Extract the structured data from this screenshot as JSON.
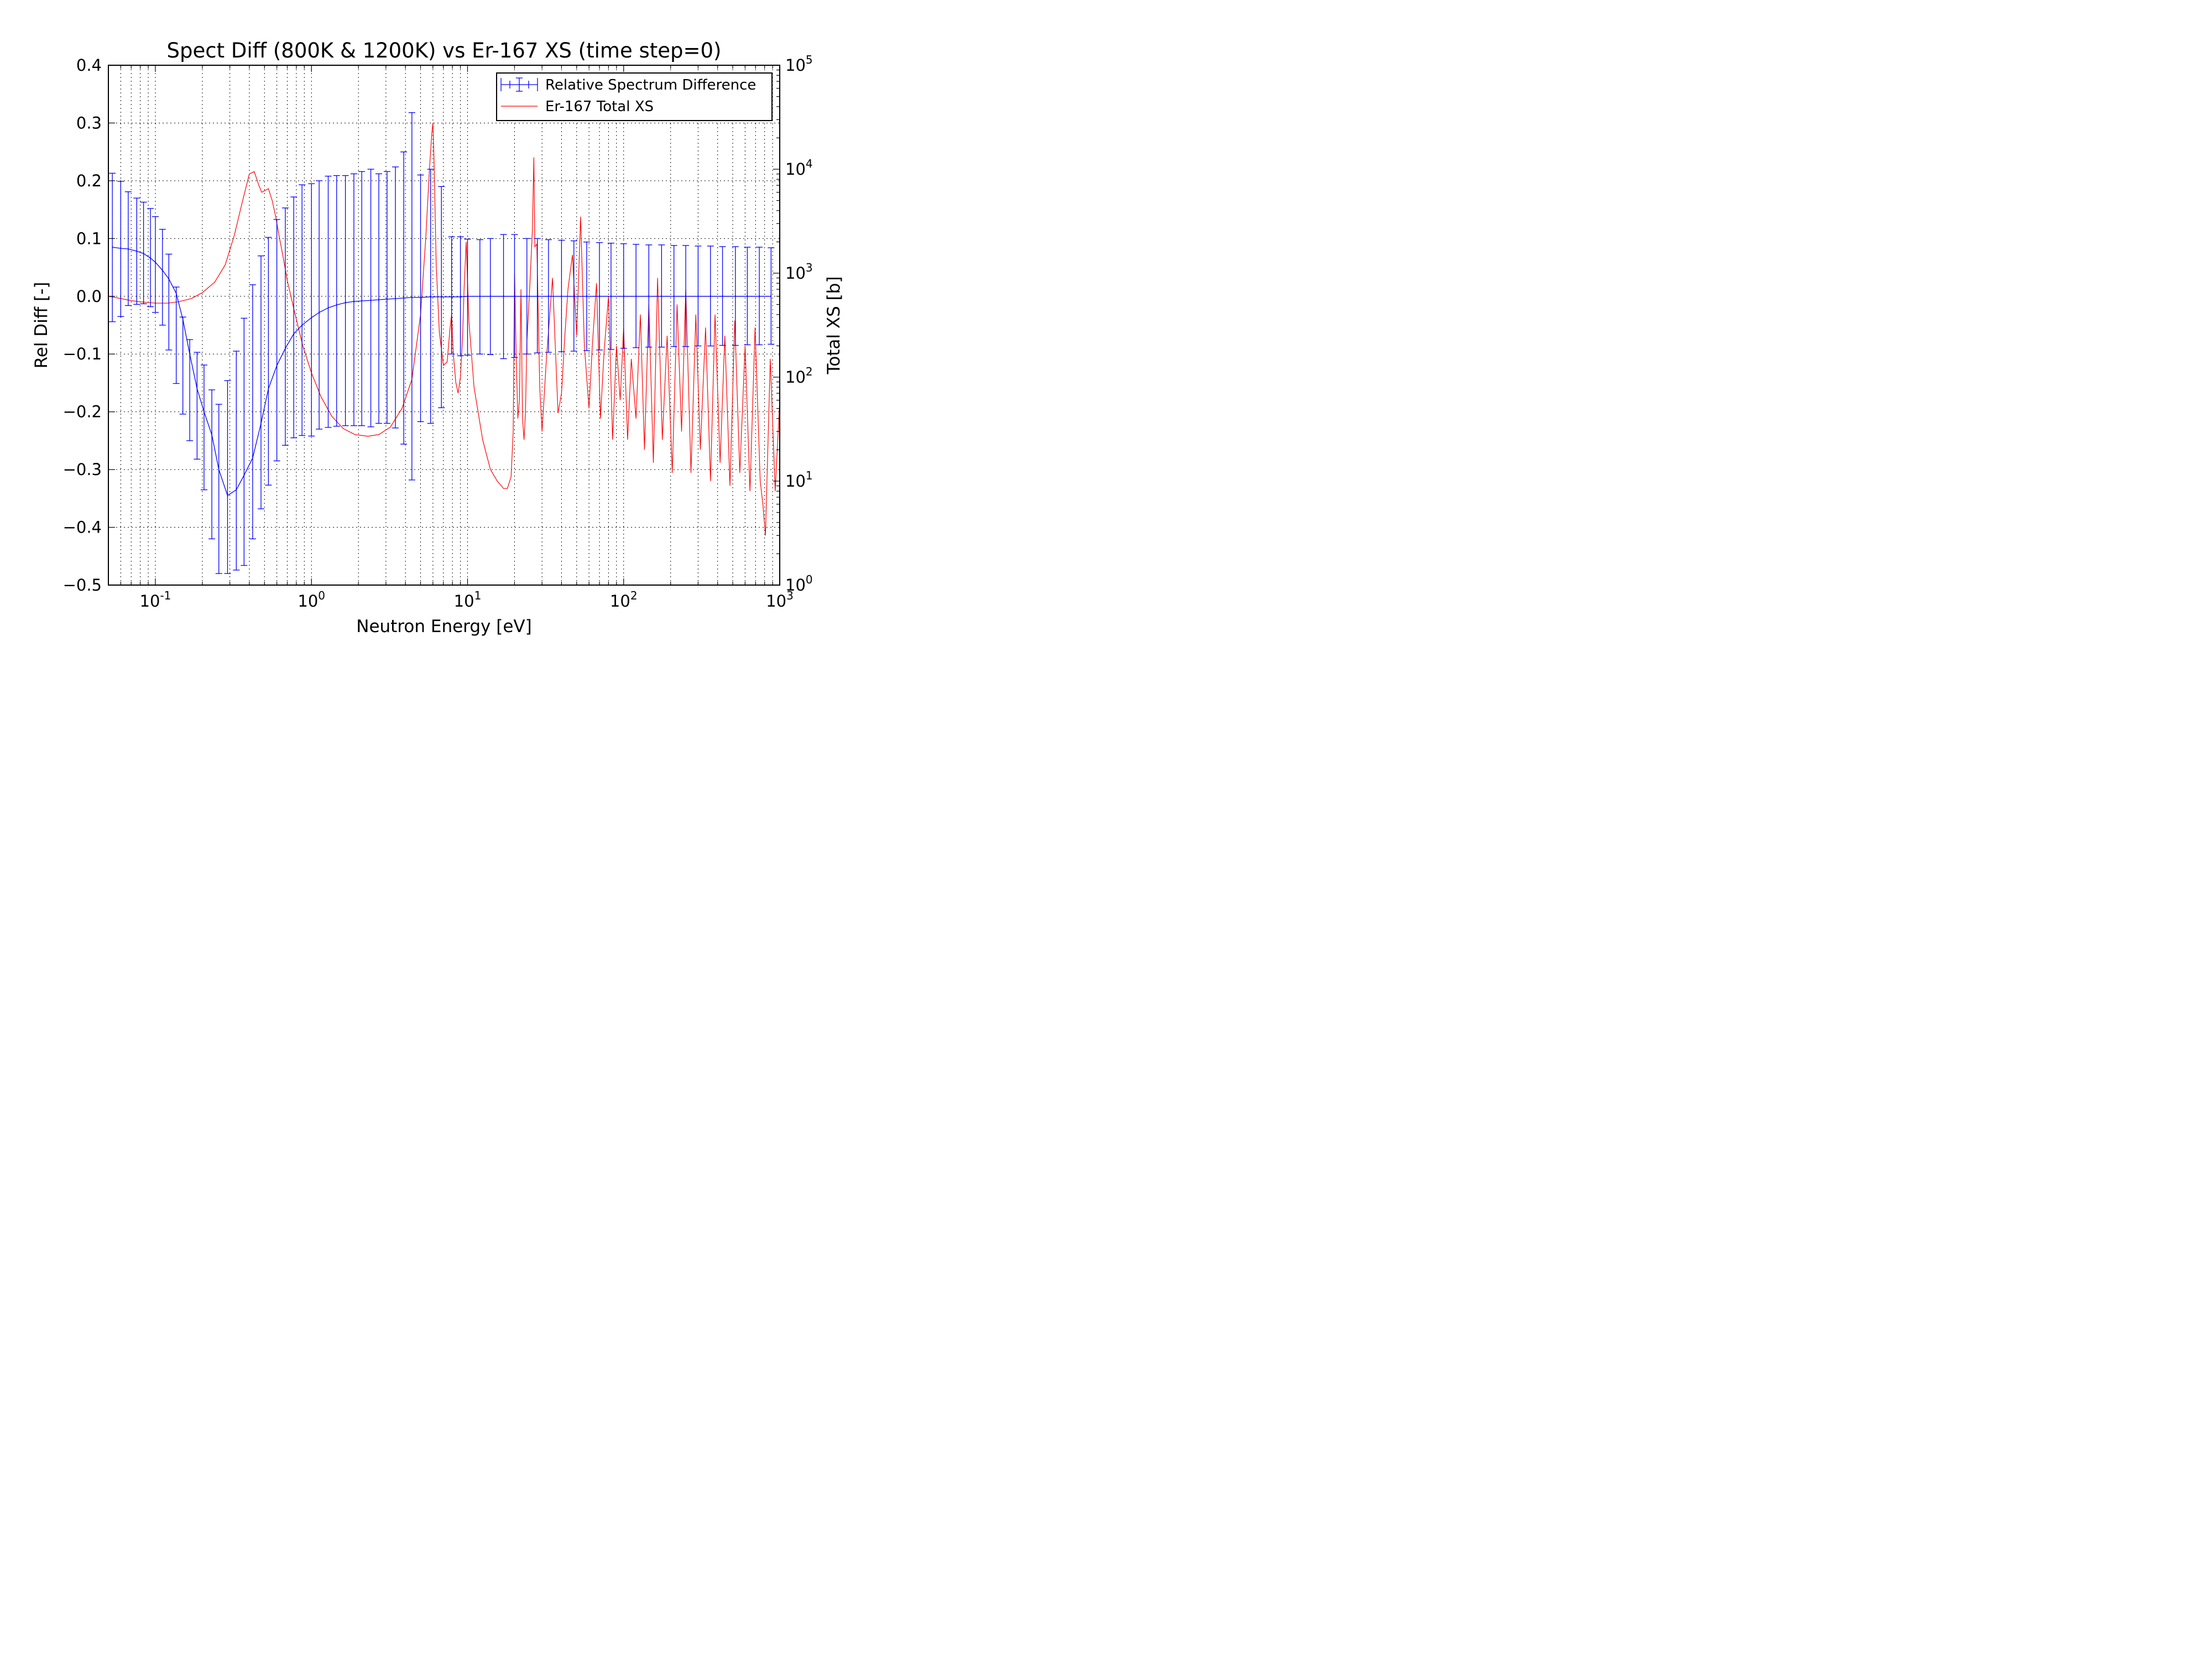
{
  "chart_data": {
    "type": "line",
    "title": "Spect Diff (800K & 1200K) vs  Er-167 XS (time step=0)",
    "xlabel": "Neutron Energy [eV]",
    "ylabel": "Rel Diff [-]",
    "y2label": "Total XS [b]",
    "xscale": "log",
    "xlim": [
      0.05,
      1000
    ],
    "ylim": [
      -0.5,
      0.4
    ],
    "y2scale": "log",
    "y2lim": [
      1,
      100000
    ],
    "grid": true,
    "legend_position": "upper-right",
    "x_ticks": [
      {
        "base": "10",
        "exp": "-1",
        "value": 0.1
      },
      {
        "base": "10",
        "exp": "0",
        "value": 1
      },
      {
        "base": "10",
        "exp": "1",
        "value": 10
      },
      {
        "base": "10",
        "exp": "2",
        "value": 100
      },
      {
        "base": "10",
        "exp": "3",
        "value": 1000
      }
    ],
    "y_ticks": [
      "0.4",
      "0.3",
      "0.2",
      "0.1",
      "0.0",
      "−0.1",
      "−0.2",
      "−0.3",
      "−0.4",
      "−0.5"
    ],
    "y2_ticks": [
      {
        "base": "10",
        "exp": "5",
        "value": 100000
      },
      {
        "base": "10",
        "exp": "4",
        "value": 10000
      },
      {
        "base": "10",
        "exp": "3",
        "value": 1000
      },
      {
        "base": "10",
        "exp": "2",
        "value": 100
      },
      {
        "base": "10",
        "exp": "1",
        "value": 10
      },
      {
        "base": "10",
        "exp": "0",
        "value": 1
      }
    ],
    "series": [
      {
        "name": "Relative Spectrum Difference",
        "color": "#0000ff",
        "axis": "left",
        "style": "line-with-errorbars",
        "x": [
          0.053,
          0.06,
          0.067,
          0.076,
          0.084,
          0.093,
          0.1,
          0.111,
          0.122,
          0.136,
          0.15,
          0.166,
          0.185,
          0.205,
          0.23,
          0.255,
          0.29,
          0.33,
          0.37,
          0.42,
          0.475,
          0.53,
          0.6,
          0.68,
          0.77,
          0.87,
          1.0,
          1.12,
          1.28,
          1.45,
          1.65,
          1.87,
          2.1,
          2.4,
          2.7,
          3.05,
          3.45,
          3.9,
          4.4,
          5.0,
          5.8,
          6.8,
          7.9,
          9.0,
          10.0,
          12.0,
          14.0,
          17.0,
          20.0,
          24.0,
          28.0,
          33.0,
          40.0,
          48.0,
          58.0,
          70.0,
          83.0,
          100.0,
          120.0,
          145.0,
          175.0,
          210.0,
          250.0,
          300.0,
          360.0,
          430.0,
          520.0,
          620.0,
          740.0,
          880.0
        ],
        "y": [
          0.085,
          0.083,
          0.082,
          0.078,
          0.074,
          0.066,
          0.059,
          0.045,
          0.03,
          0.005,
          -0.04,
          -0.1,
          -0.16,
          -0.2,
          -0.24,
          -0.3,
          -0.345,
          -0.335,
          -0.31,
          -0.28,
          -0.22,
          -0.16,
          -0.12,
          -0.09,
          -0.065,
          -0.05,
          -0.037,
          -0.028,
          -0.02,
          -0.015,
          -0.011,
          -0.009,
          -0.008,
          -0.007,
          -0.006,
          -0.005,
          -0.004,
          -0.003,
          -0.002,
          -0.002,
          -0.001,
          -0.001,
          -0.001,
          -0.001,
          0.0,
          0.0,
          0.0,
          0.0,
          0.0,
          0.0,
          0.0,
          0.0,
          0.0,
          0.0,
          0.0,
          0.0,
          0.0,
          0.0,
          0.0,
          0.0,
          0.0,
          0.0,
          0.0,
          0.0,
          0.0,
          0.0,
          0.0,
          0.0,
          0.0,
          0.0
        ],
        "y_err_high": [
          0.213,
          0.199,
          0.181,
          0.17,
          0.163,
          0.152,
          0.138,
          0.116,
          0.073,
          0.016,
          -0.036,
          -0.075,
          -0.097,
          -0.119,
          -0.162,
          -0.187,
          -0.146,
          -0.095,
          -0.038,
          0.02,
          0.07,
          0.102,
          0.133,
          0.153,
          0.172,
          0.193,
          0.195,
          0.2,
          0.208,
          0.209,
          0.209,
          0.212,
          0.216,
          0.22,
          0.212,
          0.216,
          0.224,
          0.25,
          0.318,
          0.21,
          0.22,
          0.19,
          0.103,
          0.103,
          0.099,
          0.098,
          0.1,
          0.107,
          0.107,
          0.1,
          0.1,
          0.098,
          0.097,
          0.096,
          0.094,
          0.093,
          0.092,
          0.091,
          0.09,
          0.089,
          0.089,
          0.088,
          0.088,
          0.087,
          0.087,
          0.086,
          0.086,
          0.085,
          0.085,
          0.084
        ],
        "y_err_low": [
          -0.044,
          -0.035,
          -0.016,
          -0.014,
          -0.013,
          -0.018,
          -0.028,
          -0.05,
          -0.093,
          -0.151,
          -0.204,
          -0.25,
          -0.282,
          -0.335,
          -0.42,
          -0.48,
          -0.48,
          -0.474,
          -0.466,
          -0.42,
          -0.368,
          -0.327,
          -0.285,
          -0.258,
          -0.245,
          -0.241,
          -0.242,
          -0.23,
          -0.227,
          -0.225,
          -0.224,
          -0.224,
          -0.224,
          -0.226,
          -0.22,
          -0.22,
          -0.228,
          -0.256,
          -0.318,
          -0.217,
          -0.22,
          -0.193,
          -0.1,
          -0.103,
          -0.102,
          -0.1,
          -0.101,
          -0.108,
          -0.106,
          -0.1,
          -0.098,
          -0.097,
          -0.096,
          -0.095,
          -0.094,
          -0.093,
          -0.092,
          -0.09,
          -0.089,
          -0.088,
          -0.088,
          -0.087,
          -0.087,
          -0.086,
          -0.086,
          -0.085,
          -0.085,
          -0.084,
          -0.084,
          -0.083
        ]
      },
      {
        "name": "Er-167 Total XS",
        "color": "#ff0000",
        "axis": "right",
        "style": "line",
        "x": [
          0.05,
          0.06,
          0.07,
          0.08,
          0.1,
          0.12,
          0.14,
          0.17,
          0.2,
          0.24,
          0.28,
          0.32,
          0.36,
          0.4,
          0.43,
          0.46,
          0.48,
          0.5,
          0.53,
          0.56,
          0.59,
          0.62,
          0.66,
          0.7,
          0.78,
          0.88,
          1.0,
          1.15,
          1.35,
          1.6,
          1.9,
          2.3,
          2.7,
          3.2,
          3.8,
          4.4,
          5.0,
          5.4,
          5.7,
          5.9,
          6.0,
          6.1,
          6.3,
          6.6,
          7.0,
          7.4,
          7.7,
          7.9,
          8.1,
          8.4,
          8.7,
          9.0,
          9.3,
          9.5,
          9.8,
          10.2,
          11.0,
          12.5,
          14.0,
          15.5,
          17.0,
          18.0,
          19.0,
          19.6,
          20.0,
          20.5,
          21.0,
          21.5,
          22.0,
          22.5,
          23.0,
          23.5,
          24.0,
          25.0,
          26.0,
          26.6,
          27.0,
          27.8,
          29.0,
          30.0,
          32.0,
          35.0,
          38.0,
          40.0,
          42.0,
          44.0,
          47.0,
          50.0,
          53.0,
          56.0,
          60.0,
          63.0,
          67.0,
          71.0,
          75.0,
          80.0,
          85.0,
          90.0,
          95.0,
          100.0,
          106.0,
          112.0,
          120.0,
          128.0,
          136.0,
          145.0,
          155.0,
          165.0,
          177.0,
          190.0,
          205.0,
          220.0,
          235.0,
          250.0,
          270.0,
          290.0,
          310.0,
          335.0,
          360.0,
          385.0,
          415.0,
          445.0,
          480.0,
          515.0,
          555.0,
          600.0,
          645.0,
          695.0,
          750.0,
          780.0,
          810.0,
          870.0,
          935.0,
          1000.0
        ],
        "y": [
          600,
          570,
          545,
          530,
          515,
          515,
          530,
          570,
          650,
          820,
          1200,
          2300,
          4800,
          9000,
          9500,
          7000,
          6000,
          6200,
          6500,
          5000,
          3500,
          2300,
          1400,
          850,
          420,
          200,
          110,
          65,
          42,
          32,
          28,
          27,
          28,
          33,
          50,
          95,
          400,
          2200,
          10000,
          22000,
          28000,
          12000,
          1200,
          270,
          130,
          140,
          280,
          400,
          170,
          90,
          70,
          100,
          250,
          700,
          2000,
          350,
          80,
          25,
          13,
          10,
          8.5,
          8.5,
          11,
          30,
          1000,
          150,
          40,
          60,
          700,
          40,
          25,
          45,
          220,
          700,
          2500,
          13000,
          1800,
          1900,
          80,
          30,
          150,
          900,
          45,
          70,
          250,
          700,
          1500,
          250,
          3500,
          200,
          50,
          200,
          800,
          40,
          180,
          600,
          25,
          200,
          60,
          300,
          25,
          150,
          40,
          400,
          20,
          500,
          15,
          900,
          25,
          250,
          12,
          500,
          30,
          700,
          12,
          400,
          20,
          300,
          10,
          400,
          15,
          250,
          9,
          350,
          12,
          200,
          8,
          300,
          10,
          6,
          3,
          150,
          8,
          60
        ]
      }
    ]
  }
}
